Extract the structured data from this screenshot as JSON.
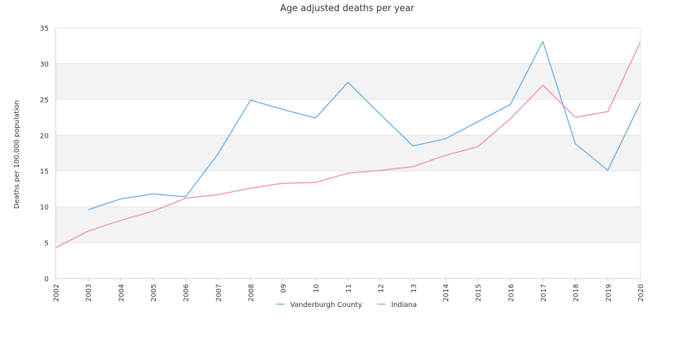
{
  "chart_data": {
    "type": "line",
    "title": "Age adjusted deaths per year",
    "xlabel": "",
    "ylabel": "Deaths per 100,000 population",
    "categories": [
      "2002",
      "2003",
      "2004",
      "2005",
      "2006",
      "2007",
      "2008",
      "09",
      "10",
      "11",
      "12",
      "13",
      "2014",
      "2015",
      "2016",
      "2017",
      "2018",
      "2019",
      "2020"
    ],
    "ylim": [
      0,
      35
    ],
    "yticks": [
      0,
      5,
      10,
      15,
      20,
      25,
      30,
      35
    ],
    "grid": "alternating horizontal bands",
    "legend": "bottom-center",
    "series": [
      {
        "name": "Vanderburgh County",
        "color": "#6aaee8",
        "values": [
          null,
          9.6,
          11.1,
          11.8,
          11.4,
          17.4,
          24.9,
          23.6,
          22.4,
          27.4,
          22.9,
          18.5,
          19.5,
          21.9,
          24.3,
          33.1,
          18.8,
          15.1,
          24.5
        ]
      },
      {
        "name": "Indiana",
        "color": "#f08cbb",
        "values": [
          4.3,
          6.6,
          8.1,
          9.4,
          11.2,
          11.7,
          12.6,
          13.3,
          13.4,
          14.7,
          15.1,
          15.6,
          17.2,
          18.4,
          22.3,
          27.0,
          22.5,
          23.3,
          33.0
        ]
      }
    ]
  }
}
